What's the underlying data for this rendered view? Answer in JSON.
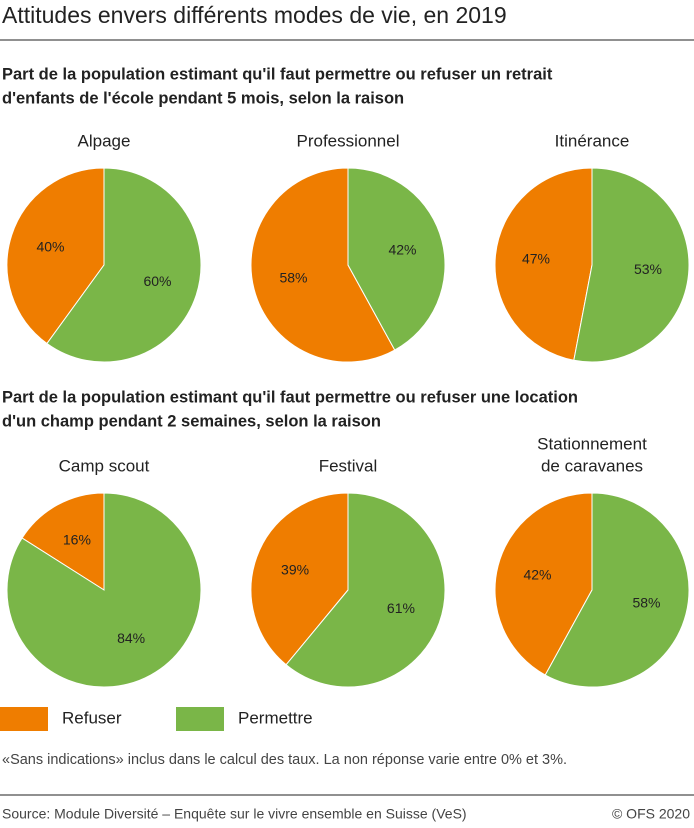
{
  "title": "Attitudes envers différents modes de vie, en 2019",
  "sections": [
    {
      "subtitle_lines": [
        "Part de la population estimant qu'il faut permettre ou refuser un retrait",
        "d'enfants de l'école pendant 5  mois, selon la raison"
      ]
    },
    {
      "subtitle_lines": [
        "Part de la population estimant qu'il faut permettre ou refuser une location",
        "d'un champ pendant 2 semaines, selon la raison"
      ]
    }
  ],
  "legend": [
    {
      "name": "Refuser",
      "color": "#ef7d00"
    },
    {
      "name": "Permettre",
      "color": "#7ab648"
    }
  ],
  "chart_data": [
    {
      "type": "pie",
      "title_lines": [
        "Alpage"
      ],
      "values": [
        40,
        60
      ],
      "value_labels": [
        "40%",
        "60%"
      ]
    },
    {
      "type": "pie",
      "title_lines": [
        "Professionnel"
      ],
      "values": [
        58,
        42
      ],
      "value_labels": [
        "58%",
        "42%"
      ]
    },
    {
      "type": "pie",
      "title_lines": [
        "Itinérance"
      ],
      "values": [
        47,
        53
      ],
      "value_labels": [
        "47%",
        "53%"
      ]
    },
    {
      "type": "pie",
      "title_lines": [
        "Camp scout"
      ],
      "values": [
        16,
        84
      ],
      "value_labels": [
        "16%",
        "84%"
      ]
    },
    {
      "type": "pie",
      "title_lines": [
        "Festival"
      ],
      "values": [
        39,
        61
      ],
      "value_labels": [
        "39%",
        "61%"
      ]
    },
    {
      "type": "pie",
      "title_lines": [
        "Stationnement",
        "de caravanes"
      ],
      "values": [
        42,
        58
      ],
      "value_labels": [
        "42%",
        "58%"
      ]
    }
  ],
  "note": "«Sans indications» inclus dans le calcul des taux. La non réponse varie entre 0% et 3%.",
  "source": "Source: Module Diversité – Enquête sur le vivre ensemble en Suisse (VeS)",
  "copyright": "© OFS 2020"
}
